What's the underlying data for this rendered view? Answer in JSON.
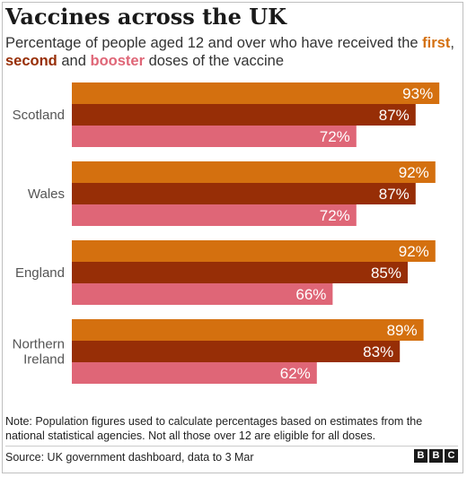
{
  "header": {
    "title": "Vaccines across the UK",
    "subtitle_part1": "Percentage of people aged 12 and over who have received the ",
    "subtitle_first": "first",
    "subtitle_sep": ", ",
    "subtitle_second": "second",
    "subtitle_and": " and ",
    "subtitle_booster": "booster",
    "subtitle_part2": " doses of the vaccine"
  },
  "footer": {
    "note": "Note: Population figures used to calculate percentages based on estimates from the national statistical agencies. Not all those over 12 are eligible for all doses.",
    "source": "Source: UK government dashboard, data to 3 Mar",
    "logo_letters": [
      "B",
      "B",
      "C"
    ]
  },
  "colors": {
    "first": "#d4700f",
    "second": "#972e06",
    "booster": "#df6677",
    "category_label": "#555555",
    "value_label": "#ffffff"
  },
  "chart_data": {
    "type": "bar",
    "orientation": "horizontal",
    "title": "Vaccines across the UK",
    "categories": [
      "Scotland",
      "Wales",
      "England",
      "Northern Ireland"
    ],
    "category_lines": [
      [
        "Scotland"
      ],
      [
        "Wales"
      ],
      [
        "England"
      ],
      [
        "Northern",
        "Ireland"
      ]
    ],
    "series": [
      {
        "name": "first",
        "values": [
          93,
          92,
          92,
          89
        ]
      },
      {
        "name": "second",
        "values": [
          87,
          87,
          85,
          83
        ]
      },
      {
        "name": "booster",
        "values": [
          72,
          72,
          66,
          62
        ]
      }
    ],
    "value_suffix": "%",
    "xlim": [
      0,
      100
    ],
    "grid": false,
    "legend": "subtitle"
  }
}
